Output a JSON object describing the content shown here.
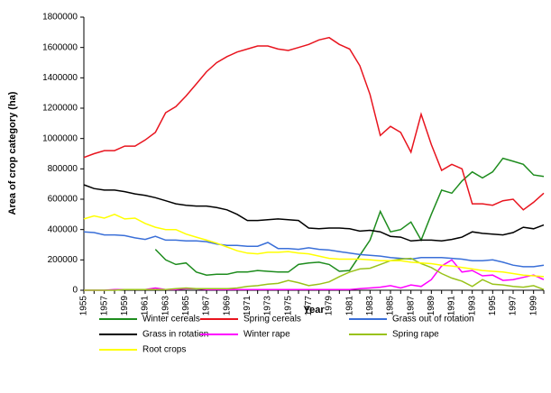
{
  "chart_data": {
    "type": "line",
    "xlabel": "Year",
    "ylabel": "Area of crop category (ha)",
    "x": [
      1955,
      1956,
      1957,
      1958,
      1959,
      1960,
      1961,
      1962,
      1963,
      1964,
      1965,
      1966,
      1967,
      1968,
      1969,
      1970,
      1971,
      1972,
      1973,
      1974,
      1975,
      1976,
      1977,
      1978,
      1979,
      1980,
      1981,
      1982,
      1983,
      1984,
      1985,
      1986,
      1987,
      1988,
      1989,
      1990,
      1991,
      1992,
      1993,
      1994,
      1995,
      1996,
      1997,
      1998,
      1999,
      2000
    ],
    "xlim": [
      1955,
      2000
    ],
    "xticks": [
      1955,
      1957,
      1959,
      1961,
      1963,
      1965,
      1967,
      1969,
      1971,
      1973,
      1975,
      1977,
      1979,
      1981,
      1983,
      1985,
      1987,
      1989,
      1991,
      1993,
      1995,
      1997,
      1999
    ],
    "ylim": [
      0,
      1800000
    ],
    "yticks": [
      0,
      200000,
      400000,
      600000,
      800000,
      1000000,
      1200000,
      1400000,
      1600000,
      1800000
    ],
    "series": [
      {
        "name": "Winter cereals",
        "color": "#1e8c1e",
        "values": [
          null,
          null,
          null,
          null,
          null,
          null,
          null,
          270000,
          200000,
          170000,
          180000,
          120000,
          100000,
          105000,
          105000,
          120000,
          120000,
          130000,
          125000,
          120000,
          120000,
          170000,
          180000,
          185000,
          170000,
          125000,
          130000,
          230000,
          330000,
          520000,
          385000,
          400000,
          450000,
          330000,
          500000,
          660000,
          640000,
          720000,
          780000,
          740000,
          780000,
          870000,
          850000,
          830000,
          760000,
          750000
        ]
      },
      {
        "name": "Spring cereals",
        "color": "#e8141e",
        "values": [
          875000,
          900000,
          920000,
          920000,
          950000,
          950000,
          990000,
          1040000,
          1170000,
          1210000,
          1280000,
          1360000,
          1440000,
          1500000,
          1540000,
          1570000,
          1590000,
          1610000,
          1610000,
          1590000,
          1580000,
          1600000,
          1620000,
          1650000,
          1665000,
          1620000,
          1590000,
          1480000,
          1290000,
          1020000,
          1080000,
          1040000,
          910000,
          1160000,
          960000,
          790000,
          830000,
          800000,
          570000,
          570000,
          560000,
          590000,
          600000,
          530000,
          580000,
          640000
        ]
      },
      {
        "name": "Grass out of rotation",
        "color": "#3a6fd8",
        "values": [
          385000,
          380000,
          365000,
          365000,
          360000,
          345000,
          335000,
          355000,
          330000,
          330000,
          325000,
          325000,
          320000,
          305000,
          295000,
          295000,
          290000,
          290000,
          315000,
          275000,
          275000,
          270000,
          280000,
          270000,
          265000,
          255000,
          245000,
          235000,
          230000,
          225000,
          215000,
          210000,
          205000,
          215000,
          215000,
          215000,
          210000,
          205000,
          195000,
          195000,
          200000,
          185000,
          165000,
          155000,
          155000,
          165000
        ]
      },
      {
        "name": "Grass in rotation",
        "color": "#000000",
        "values": [
          695000,
          670000,
          660000,
          660000,
          650000,
          635000,
          625000,
          610000,
          590000,
          570000,
          560000,
          555000,
          555000,
          545000,
          530000,
          500000,
          460000,
          460000,
          465000,
          470000,
          465000,
          460000,
          410000,
          405000,
          410000,
          410000,
          405000,
          390000,
          395000,
          385000,
          355000,
          350000,
          325000,
          330000,
          330000,
          325000,
          335000,
          350000,
          385000,
          375000,
          370000,
          365000,
          380000,
          415000,
          405000,
          430000
        ]
      },
      {
        "name": "Winter rape",
        "color": "#ff00ff",
        "values": [
          0,
          0,
          0,
          5000,
          5000,
          5000,
          5000,
          15000,
          5000,
          5000,
          10000,
          10000,
          5000,
          5000,
          5000,
          5000,
          5000,
          5000,
          5000,
          5000,
          5000,
          5000,
          5000,
          5000,
          5000,
          5000,
          5000,
          10000,
          15000,
          20000,
          30000,
          15000,
          35000,
          25000,
          70000,
          160000,
          200000,
          120000,
          130000,
          95000,
          100000,
          65000,
          70000,
          85000,
          100000,
          70000
        ]
      },
      {
        "name": "Spring rape",
        "color": "#99c21a",
        "values": [
          0,
          0,
          0,
          0,
          5000,
          5000,
          5000,
          5000,
          5000,
          10000,
          15000,
          10000,
          10000,
          10000,
          10000,
          15000,
          25000,
          30000,
          40000,
          45000,
          65000,
          50000,
          30000,
          40000,
          55000,
          90000,
          120000,
          140000,
          145000,
          170000,
          195000,
          205000,
          210000,
          175000,
          150000,
          110000,
          80000,
          60000,
          25000,
          70000,
          40000,
          35000,
          25000,
          20000,
          30000,
          5000
        ]
      },
      {
        "name": "Root crops",
        "color": "#ffff00",
        "values": [
          470000,
          490000,
          475000,
          500000,
          470000,
          475000,
          440000,
          415000,
          400000,
          400000,
          370000,
          350000,
          330000,
          310000,
          285000,
          260000,
          245000,
          240000,
          250000,
          250000,
          255000,
          245000,
          240000,
          225000,
          210000,
          205000,
          205000,
          205000,
          200000,
          195000,
          195000,
          195000,
          185000,
          180000,
          175000,
          165000,
          160000,
          150000,
          140000,
          130000,
          125000,
          120000,
          110000,
          100000,
          95000,
          90000
        ]
      }
    ]
  }
}
